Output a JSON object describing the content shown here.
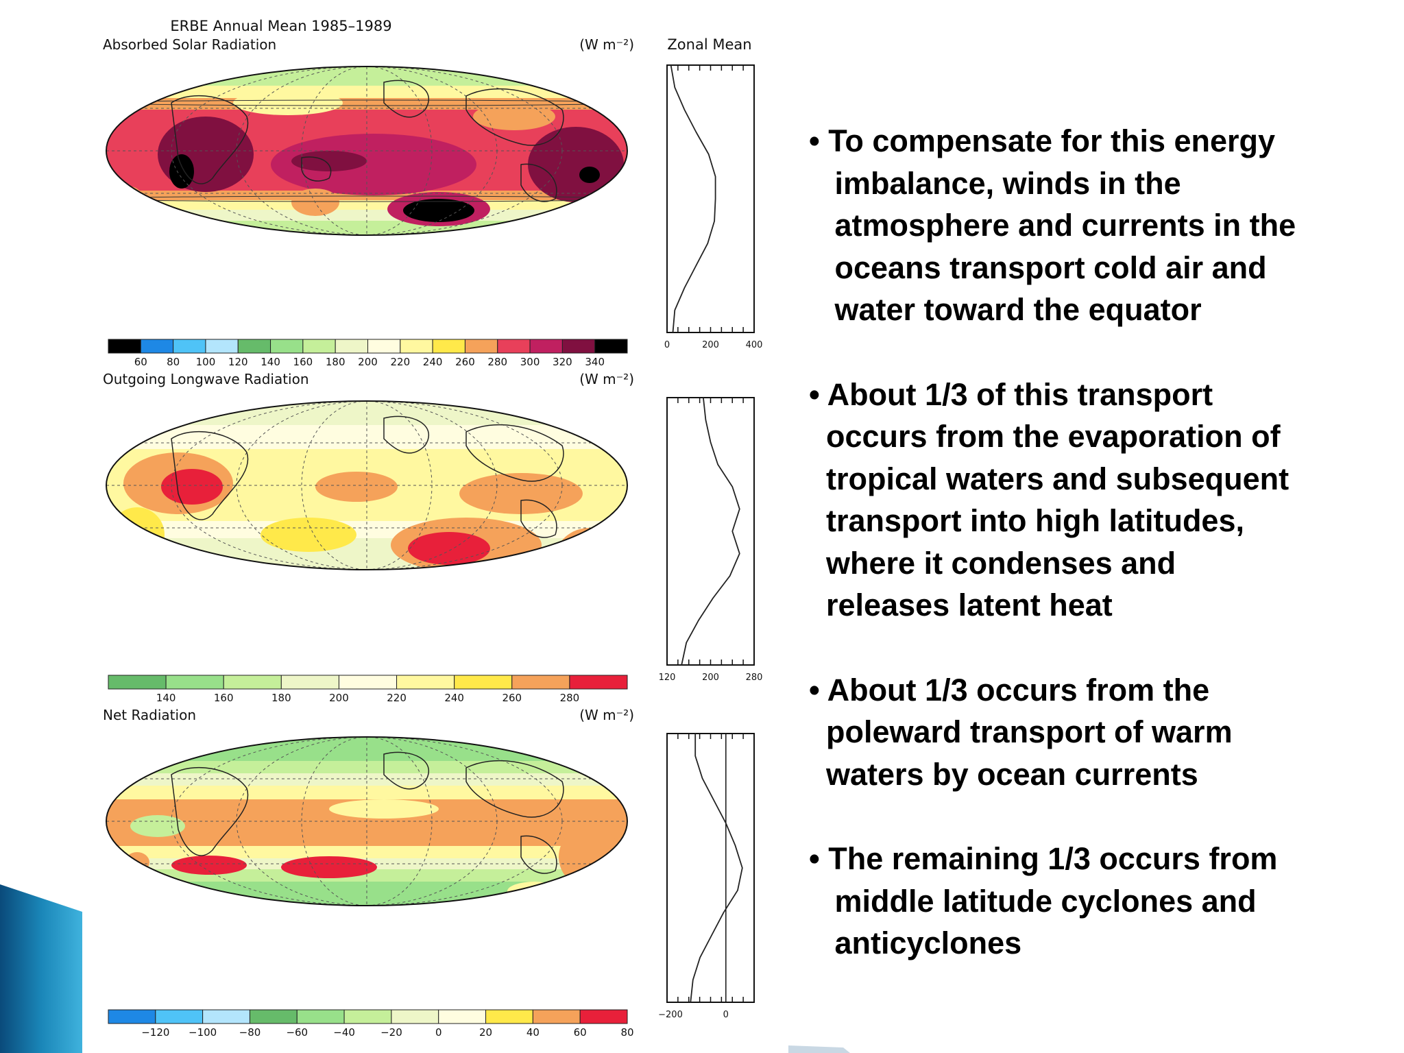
{
  "figure": {
    "title": "ERBE Annual Mean 1985–1989",
    "zonal_title": "Zonal Mean",
    "panels": [
      {
        "name": "Absorbed Solar Radiation",
        "units": "(W m⁻²)",
        "colorbar_ticks": [
          "60",
          "80",
          "100",
          "120",
          "140",
          "160",
          "180",
          "200",
          "220",
          "240",
          "260",
          "280",
          "300",
          "320",
          "340"
        ],
        "colorbar_colors": [
          "#000000",
          "#1e88e5",
          "#4fc3f7",
          "#b3e5fc",
          "#66bb6a",
          "#98e08a",
          "#c5ef9a",
          "#eef6c8",
          "#fffde0",
          "#fff8a0",
          "#ffe94a",
          "#f5a25a",
          "#e8405a",
          "#c02060",
          "#801040",
          "#000000"
        ],
        "zonal_ticks": [
          "0",
          "200",
          "400"
        ],
        "zonal_profile": [
          [
            30,
            -90
          ],
          [
            40,
            -75
          ],
          [
            90,
            -60
          ],
          [
            150,
            -45
          ],
          [
            210,
            -30
          ],
          [
            245,
            -15
          ],
          [
            250,
            0
          ],
          [
            250,
            15
          ],
          [
            215,
            30
          ],
          [
            150,
            45
          ],
          [
            90,
            60
          ],
          [
            40,
            75
          ],
          [
            20,
            90
          ]
        ],
        "zonal_xlim": [
          0,
          450
        ]
      },
      {
        "name": "Outgoing Longwave Radiation",
        "units": "(W m⁻²)",
        "colorbar_ticks": [
          "140",
          "160",
          "180",
          "200",
          "220",
          "240",
          "260",
          "280"
        ],
        "colorbar_colors": [
          "#66bb6a",
          "#98e08a",
          "#c5ef9a",
          "#eef6c8",
          "#fffde0",
          "#fff8a0",
          "#ffe94a",
          "#f5a25a",
          "#e8203a"
        ],
        "zonal_ticks": [
          "120",
          "200",
          "280"
        ],
        "zonal_profile": [
          [
            140,
            -90
          ],
          [
            150,
            -75
          ],
          [
            175,
            -60
          ],
          [
            205,
            -45
          ],
          [
            240,
            -30
          ],
          [
            260,
            -15
          ],
          [
            245,
            0
          ],
          [
            260,
            15
          ],
          [
            245,
            30
          ],
          [
            215,
            45
          ],
          [
            200,
            60
          ],
          [
            190,
            75
          ],
          [
            185,
            90
          ]
        ],
        "zonal_xlim": [
          110,
          290
        ]
      },
      {
        "name": "Net Radiation",
        "units": "(W m⁻²)",
        "colorbar_ticks": [
          "−120",
          "−100",
          "−80",
          "−60",
          "−40",
          "−20",
          "0",
          "20",
          "40",
          "60",
          "80"
        ],
        "colorbar_colors": [
          "#1e88e5",
          "#4fc3f7",
          "#b3e5fc",
          "#66bb6a",
          "#98e08a",
          "#c5ef9a",
          "#eef6c8",
          "#fffde0",
          "#ffe94a",
          "#f5a25a",
          "#e8203a"
        ],
        "zonal_ticks": [
          "−200",
          "0"
        ],
        "zonal_profile": [
          [
            -150,
            -90
          ],
          [
            -140,
            -75
          ],
          [
            -110,
            -60
          ],
          [
            -60,
            -45
          ],
          [
            -10,
            -30
          ],
          [
            50,
            -15
          ],
          [
            70,
            0
          ],
          [
            40,
            15
          ],
          [
            0,
            30
          ],
          [
            -50,
            45
          ],
          [
            -100,
            60
          ],
          [
            -130,
            75
          ],
          [
            -130,
            90
          ]
        ],
        "zonal_xlim": [
          -250,
          120
        ]
      }
    ]
  },
  "bullets": [
    "• To compensate for this energy\n   imbalance, winds in the\n   atmosphere and currents in the\n   oceans transport cold air and\n   water toward the equator",
    "• About 1/3 of this transport\n  occurs from the evaporation of\n  tropical waters and subsequent\n  transport into high latitudes,\n  where it condenses and\n  releases latent heat",
    "• About 1/3 occurs from the\n  poleward transport of warm\n  waters by ocean currents",
    "• The remaining 1/3 occurs from\n   middle latitude cyclones and\n   anticyclones"
  ]
}
